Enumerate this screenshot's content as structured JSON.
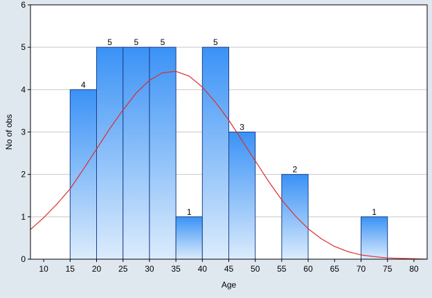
{
  "chart_data": {
    "type": "bar",
    "xlabel": "Age",
    "ylabel": "No of obs",
    "xlim": [
      7.5,
      82.5
    ],
    "ylim": [
      0,
      6
    ],
    "xticks": [
      10,
      15,
      20,
      25,
      30,
      35,
      40,
      45,
      50,
      55,
      60,
      65,
      70,
      75,
      80
    ],
    "yticks": [
      0,
      1,
      2,
      3,
      4,
      5,
      6
    ],
    "grid": "horizontal",
    "bins": [
      {
        "start": 15,
        "end": 20,
        "value": 4,
        "label": "4"
      },
      {
        "start": 20,
        "end": 25,
        "value": 5,
        "label": "5"
      },
      {
        "start": 25,
        "end": 30,
        "value": 5,
        "label": "5"
      },
      {
        "start": 30,
        "end": 35,
        "value": 5,
        "label": "5"
      },
      {
        "start": 35,
        "end": 40,
        "value": 1,
        "label": "1"
      },
      {
        "start": 40,
        "end": 45,
        "value": 5,
        "label": "5"
      },
      {
        "start": 45,
        "end": 50,
        "value": 3,
        "label": "3"
      },
      {
        "start": 55,
        "end": 60,
        "value": 2,
        "label": "2"
      },
      {
        "start": 70,
        "end": 75,
        "value": 1,
        "label": "1"
      }
    ],
    "curve": {
      "type": "normal",
      "x": [
        7.5,
        10,
        12.5,
        15,
        17.5,
        20,
        22.5,
        25,
        27.5,
        30,
        32.5,
        35,
        37.5,
        40,
        42.5,
        45,
        47.5,
        50,
        52.5,
        55,
        57.5,
        60,
        62.5,
        65,
        67.5,
        70,
        72.5,
        75,
        77.5,
        80,
        82.5
      ],
      "y": [
        0.7,
        0.98,
        1.3,
        1.66,
        2.12,
        2.6,
        3.08,
        3.52,
        3.92,
        4.22,
        4.4,
        4.43,
        4.32,
        4.06,
        3.7,
        3.28,
        2.8,
        2.32,
        1.84,
        1.4,
        1.03,
        0.72,
        0.48,
        0.3,
        0.18,
        0.1,
        0.06,
        0.03,
        0.02,
        0.01,
        0.0
      ]
    },
    "colors": {
      "bar_top": "#3a92f6",
      "bar_bottom": "#dcecfc",
      "bar_edge": "#1b3f8a",
      "curve": "#dd2b2b",
      "background": "#ffffff",
      "outer": "#dfe7ef",
      "grid": "#c8c8c8"
    }
  }
}
